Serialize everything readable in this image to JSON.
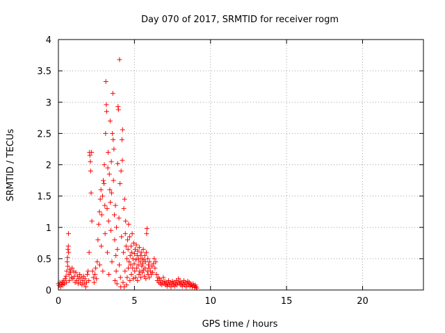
{
  "chart_data": {
    "type": "scatter",
    "title": "Day 070 of 2017, SRMTID for receiver rogm",
    "xlabel": "GPS time / hours",
    "ylabel": "SRMTID / TECUs",
    "xlim": [
      0,
      24
    ],
    "ylim": [
      0,
      4
    ],
    "x_ticks": [
      "0",
      "5",
      "10",
      "15",
      "20"
    ],
    "y_ticks": [
      "0",
      "0.5",
      "1",
      "1.5",
      "2",
      "2.5",
      "3",
      "3.5",
      "4"
    ],
    "grid": true,
    "grid_style": "dotted",
    "marker": "+",
    "color": "#ff0000",
    "series": [
      {
        "points": [
          [
            0.0,
            0.1
          ],
          [
            0.05,
            0.07
          ],
          [
            0.1,
            0.12
          ],
          [
            0.15,
            0.05
          ],
          [
            0.2,
            0.09
          ],
          [
            0.25,
            0.13
          ],
          [
            0.3,
            0.08
          ],
          [
            0.35,
            0.15
          ],
          [
            0.4,
            0.1
          ],
          [
            0.45,
            0.18
          ],
          [
            0.5,
            0.22
          ],
          [
            0.52,
            0.12
          ],
          [
            0.55,
            0.3
          ],
          [
            0.58,
            0.45
          ],
          [
            0.6,
            0.52
          ],
          [
            0.62,
            0.38
          ],
          [
            0.63,
            0.65
          ],
          [
            0.65,
            0.7
          ],
          [
            0.66,
            0.9
          ],
          [
            0.67,
            0.6
          ],
          [
            0.7,
            0.25
          ],
          [
            0.72,
            0.15
          ],
          [
            0.75,
            0.33
          ],
          [
            0.8,
            0.28
          ],
          [
            0.85,
            0.2
          ],
          [
            0.9,
            0.35
          ],
          [
            0.95,
            0.18
          ],
          [
            1.0,
            0.3
          ],
          [
            1.05,
            0.22
          ],
          [
            1.1,
            0.12
          ],
          [
            1.15,
            0.28
          ],
          [
            1.2,
            0.15
          ],
          [
            1.25,
            0.22
          ],
          [
            1.3,
            0.1
          ],
          [
            1.35,
            0.18
          ],
          [
            1.4,
            0.25
          ],
          [
            1.45,
            0.12
          ],
          [
            1.5,
            0.2
          ],
          [
            1.55,
            0.08
          ],
          [
            1.6,
            0.15
          ],
          [
            1.65,
            0.22
          ],
          [
            1.7,
            0.1
          ],
          [
            1.75,
            0.18
          ],
          [
            1.8,
            0.05
          ],
          [
            1.85,
            0.12
          ],
          [
            1.9,
            0.25
          ],
          [
            1.95,
            0.3
          ],
          [
            2.0,
            0.15
          ],
          [
            2.02,
            0.6
          ],
          [
            2.05,
            2.2
          ],
          [
            2.07,
            2.15
          ],
          [
            2.1,
            2.05
          ],
          [
            2.12,
            1.9
          ],
          [
            2.15,
            1.55
          ],
          [
            2.18,
            2.2
          ],
          [
            2.2,
            1.1
          ],
          [
            2.25,
            0.3
          ],
          [
            2.3,
            0.2
          ],
          [
            2.35,
            0.12
          ],
          [
            2.4,
            0.25
          ],
          [
            2.45,
            0.35
          ],
          [
            2.5,
            0.18
          ],
          [
            2.55,
            0.45
          ],
          [
            2.6,
            0.8
          ],
          [
            2.65,
            1.05
          ],
          [
            2.7,
            1.25
          ],
          [
            2.72,
            0.4
          ],
          [
            2.75,
            1.45
          ],
          [
            2.8,
            1.6
          ],
          [
            2.82,
            0.7
          ],
          [
            2.85,
            1.2
          ],
          [
            2.9,
            1.5
          ],
          [
            2.92,
            0.3
          ],
          [
            2.95,
            1.75
          ],
          [
            3.0,
            1.7
          ],
          [
            3.02,
            2.0
          ],
          [
            3.05,
            1.35
          ],
          [
            3.07,
            0.9
          ],
          [
            3.1,
            2.5
          ],
          [
            3.12,
            3.33
          ],
          [
            3.15,
            2.96
          ],
          [
            3.17,
            2.85
          ],
          [
            3.2,
            1.3
          ],
          [
            3.22,
            0.6
          ],
          [
            3.25,
            1.95
          ],
          [
            3.27,
            2.2
          ],
          [
            3.3,
            1.1
          ],
          [
            3.32,
            0.25
          ],
          [
            3.35,
            1.85
          ],
          [
            3.38,
            1.6
          ],
          [
            3.4,
            2.7
          ],
          [
            3.42,
            1.4
          ],
          [
            3.45,
            0.95
          ],
          [
            3.48,
            2.05
          ],
          [
            3.5,
            1.55
          ],
          [
            3.52,
            0.45
          ],
          [
            3.55,
            2.5
          ],
          [
            3.58,
            3.14
          ],
          [
            3.6,
            2.4
          ],
          [
            3.62,
            1.75
          ],
          [
            3.65,
            2.25
          ],
          [
            3.68,
            1.2
          ],
          [
            3.7,
            0.8
          ],
          [
            3.72,
            0.15
          ],
          [
            3.75,
            1.35
          ],
          [
            3.78,
            0.55
          ],
          [
            3.8,
            0.3
          ],
          [
            3.82,
            1.0
          ],
          [
            3.85,
            0.1
          ],
          [
            3.88,
            0.65
          ],
          [
            3.9,
            2.02
          ],
          [
            3.92,
            2.93
          ],
          [
            3.95,
            2.88
          ],
          [
            3.98,
            1.15
          ],
          [
            4.0,
            0.4
          ],
          [
            4.02,
            3.68
          ],
          [
            4.05,
            1.7
          ],
          [
            4.08,
            0.2
          ],
          [
            4.1,
            0.05
          ],
          [
            4.12,
            1.9
          ],
          [
            4.15,
            0.85
          ],
          [
            4.18,
            2.4
          ],
          [
            4.2,
            2.07
          ],
          [
            4.22,
            2.56
          ],
          [
            4.25,
            0.12
          ],
          [
            4.28,
            0.6
          ],
          [
            4.3,
            1.3
          ],
          [
            4.32,
            0.05
          ],
          [
            4.35,
            1.45
          ],
          [
            4.38,
            0.3
          ],
          [
            4.4,
            0.9
          ],
          [
            4.42,
            1.1
          ],
          [
            4.45,
            0.7
          ],
          [
            4.48,
            0.08
          ],
          [
            4.5,
            0.5
          ],
          [
            4.52,
            0.2
          ],
          [
            4.55,
            0.8
          ],
          [
            4.58,
            0.65
          ],
          [
            4.6,
            0.35
          ],
          [
            4.62,
            1.05
          ],
          [
            4.65,
            0.45
          ],
          [
            4.68,
            0.85
          ],
          [
            4.7,
            0.15
          ],
          [
            4.72,
            0.55
          ],
          [
            4.75,
            0.4
          ],
          [
            4.78,
            0.7
          ],
          [
            4.8,
            0.25
          ],
          [
            4.82,
            0.6
          ],
          [
            4.85,
            0.9
          ],
          [
            4.88,
            0.35
          ],
          [
            4.9,
            0.5
          ],
          [
            4.92,
            0.18
          ],
          [
            4.95,
            0.75
          ],
          [
            4.98,
            0.42
          ],
          [
            5.0,
            0.58
          ],
          [
            5.02,
            0.3
          ],
          [
            5.05,
            0.65
          ],
          [
            5.08,
            0.2
          ],
          [
            5.1,
            0.48
          ],
          [
            5.12,
            0.72
          ],
          [
            5.15,
            0.35
          ],
          [
            5.18,
            0.55
          ],
          [
            5.2,
            0.15
          ],
          [
            5.22,
            0.62
          ],
          [
            5.25,
            0.4
          ],
          [
            5.28,
            0.5
          ],
          [
            5.3,
            0.25
          ],
          [
            5.32,
            0.68
          ],
          [
            5.35,
            0.3
          ],
          [
            5.38,
            0.45
          ],
          [
            5.4,
            0.55
          ],
          [
            5.42,
            0.2
          ],
          [
            5.45,
            0.6
          ],
          [
            5.48,
            0.38
          ],
          [
            5.5,
            0.5
          ],
          [
            5.52,
            0.28
          ],
          [
            5.55,
            0.42
          ],
          [
            5.58,
            0.65
          ],
          [
            5.6,
            0.32
          ],
          [
            5.62,
            0.48
          ],
          [
            5.65,
            0.22
          ],
          [
            5.68,
            0.55
          ],
          [
            5.7,
            0.35
          ],
          [
            5.72,
            0.45
          ],
          [
            5.75,
            0.18
          ],
          [
            5.78,
            0.6
          ],
          [
            5.8,
            0.9
          ],
          [
            5.82,
            0.98
          ],
          [
            5.85,
            0.3
          ],
          [
            5.88,
            0.5
          ],
          [
            5.9,
            0.25
          ],
          [
            5.92,
            0.4
          ],
          [
            5.95,
            0.35
          ],
          [
            5.98,
            0.2
          ],
          [
            6.0,
            0.45
          ],
          [
            6.05,
            0.3
          ],
          [
            6.1,
            0.25
          ],
          [
            6.15,
            0.38
          ],
          [
            6.2,
            0.28
          ],
          [
            6.25,
            0.42
          ],
          [
            6.3,
            0.5
          ],
          [
            6.35,
            0.35
          ],
          [
            6.4,
            0.45
          ],
          [
            6.45,
            0.25
          ],
          [
            6.5,
            0.15
          ],
          [
            6.55,
            0.2
          ],
          [
            6.6,
            0.12
          ],
          [
            6.65,
            0.18
          ],
          [
            6.7,
            0.1
          ],
          [
            6.75,
            0.15
          ],
          [
            6.8,
            0.08
          ],
          [
            6.85,
            0.12
          ],
          [
            6.9,
            0.2
          ],
          [
            6.95,
            0.1
          ],
          [
            7.0,
            0.14
          ],
          [
            7.05,
            0.08
          ],
          [
            7.1,
            0.12
          ],
          [
            7.15,
            0.06
          ],
          [
            7.2,
            0.1
          ],
          [
            7.25,
            0.15
          ],
          [
            7.3,
            0.08
          ],
          [
            7.35,
            0.12
          ],
          [
            7.4,
            0.05
          ],
          [
            7.45,
            0.1
          ],
          [
            7.5,
            0.14
          ],
          [
            7.55,
            0.08
          ],
          [
            7.6,
            0.12
          ],
          [
            7.65,
            0.06
          ],
          [
            7.7,
            0.1
          ],
          [
            7.75,
            0.15
          ],
          [
            7.8,
            0.08
          ],
          [
            7.85,
            0.12
          ],
          [
            7.9,
            0.18
          ],
          [
            7.95,
            0.1
          ],
          [
            8.0,
            0.14
          ],
          [
            8.05,
            0.08
          ],
          [
            8.1,
            0.12
          ],
          [
            8.15,
            0.06
          ],
          [
            8.2,
            0.1
          ],
          [
            8.25,
            0.15
          ],
          [
            8.3,
            0.08
          ],
          [
            8.35,
            0.12
          ],
          [
            8.4,
            0.05
          ],
          [
            8.45,
            0.1
          ],
          [
            8.5,
            0.14
          ],
          [
            8.55,
            0.08
          ],
          [
            8.6,
            0.12
          ],
          [
            8.65,
            0.06
          ],
          [
            8.7,
            0.1
          ],
          [
            8.75,
            0.08
          ],
          [
            8.8,
            0.05
          ],
          [
            8.85,
            0.1
          ],
          [
            8.9,
            0.07
          ],
          [
            8.95,
            0.04
          ],
          [
            9.0,
            0.08
          ],
          [
            9.05,
            0.05
          ],
          [
            9.1,
            0.03
          ]
        ]
      }
    ]
  }
}
